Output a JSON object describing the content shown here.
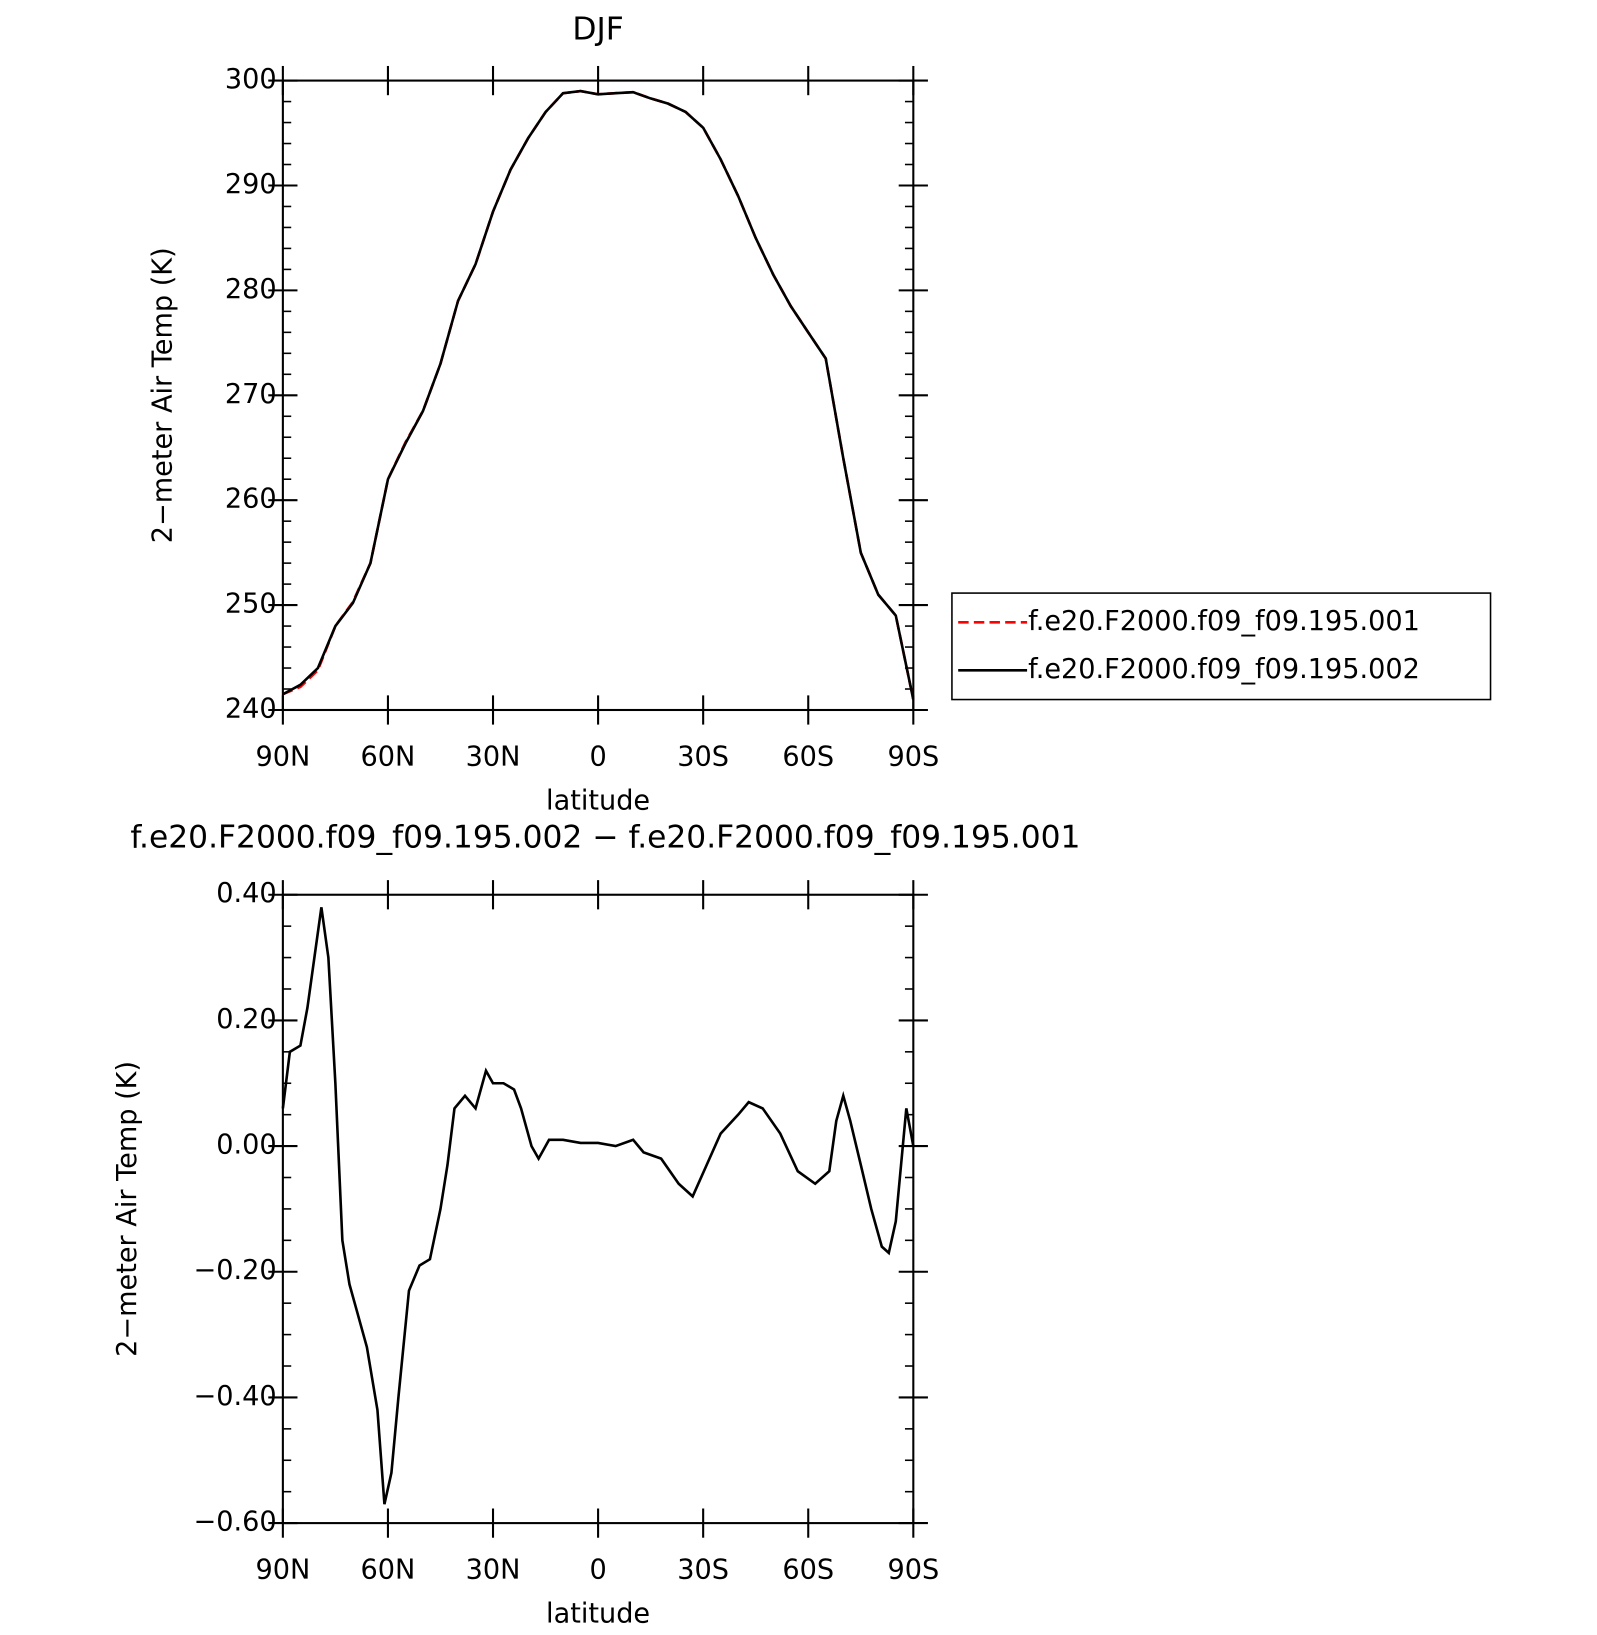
{
  "chart_data": [
    {
      "type": "line",
      "title": "DJF",
      "xlabel": "latitude",
      "ylabel": "2−meter Air Temp (K)",
      "xlim": [
        90,
        -90
      ],
      "xticks": [
        {
          "value": 90,
          "label": "90N"
        },
        {
          "value": 60,
          "label": "60N"
        },
        {
          "value": 30,
          "label": "30N"
        },
        0,
        {
          "value": -30,
          "label": "30S"
        },
        {
          "value": -60,
          "label": "60S"
        },
        {
          "value": -90,
          "label": "90S"
        }
      ],
      "ylim": [
        240,
        300
      ],
      "yticks": [
        240,
        250,
        260,
        270,
        280,
        290,
        300
      ],
      "legend": "right",
      "x": [
        90,
        85,
        80,
        75,
        70,
        65,
        60,
        55,
        50,
        45,
        40,
        35,
        30,
        25,
        20,
        15,
        10,
        5,
        0,
        -5,
        -10,
        -15,
        -20,
        -25,
        -30,
        -35,
        -40,
        -45,
        -50,
        -55,
        -60,
        -65,
        -70,
        -75,
        -80,
        -85,
        -90
      ],
      "series": [
        {
          "name": "f.e20.F2000.f09_f09.195.001",
          "color": "#ff0000",
          "dash": true,
          "values": [
            241.5,
            242.2,
            243.8,
            248,
            250.3,
            254,
            262,
            265.5,
            268.5,
            273,
            279,
            282.5,
            287.5,
            291.5,
            294.5,
            297,
            298.8,
            299,
            298.7,
            298.8,
            298.9,
            298.3,
            297.8,
            297,
            295.5,
            292.5,
            289,
            285,
            281.5,
            278.5,
            276,
            273.5,
            264,
            255,
            251,
            249,
            241
          ]
        },
        {
          "name": "f.e20.F2000.f09_f09.195.002",
          "color": "#000000",
          "dash": false,
          "values": [
            241.5,
            242.4,
            244,
            248,
            250.2,
            254,
            262,
            265.4,
            268.5,
            273,
            279,
            282.5,
            287.5,
            291.5,
            294.5,
            297,
            298.8,
            299,
            298.7,
            298.8,
            298.9,
            298.3,
            297.8,
            297,
            295.5,
            292.5,
            289,
            285,
            281.5,
            278.5,
            276,
            273.5,
            264,
            255,
            251,
            249,
            241
          ]
        }
      ]
    },
    {
      "type": "line",
      "title": "f.e20.F2000.f09_f09.195.002 − f.e20.F2000.f09_f09.195.001",
      "xlabel": "latitude",
      "ylabel": "2−meter Air Temp (K)",
      "xlim": [
        90,
        -90
      ],
      "xticks": [
        {
          "value": 90,
          "label": "90N"
        },
        {
          "value": 60,
          "label": "60N"
        },
        {
          "value": 30,
          "label": "30N"
        },
        0,
        {
          "value": -30,
          "label": "30S"
        },
        {
          "value": -60,
          "label": "60S"
        },
        {
          "value": -90,
          "label": "90S"
        }
      ],
      "ylim": [
        -0.6,
        0.4
      ],
      "yticks": [
        {
          "value": -0.6,
          "label": "−0.60"
        },
        {
          "value": -0.4,
          "label": "−0.40"
        },
        {
          "value": -0.2,
          "label": "−0.20"
        },
        {
          "value": 0,
          "label": "0.00"
        },
        {
          "value": 0.2,
          "label": "0.20"
        },
        {
          "value": 0.4,
          "label": "0.40"
        }
      ],
      "x": [
        90,
        88,
        85,
        83,
        81,
        79,
        77,
        75,
        73,
        71,
        69,
        66,
        63,
        61,
        59,
        57,
        54,
        51,
        48,
        45,
        43,
        41,
        38,
        35,
        32,
        30,
        27,
        24,
        22,
        19,
        17,
        14,
        10,
        5,
        0,
        -5,
        -10,
        -13,
        -18,
        -23,
        -27,
        -31,
        -35,
        -40,
        -43,
        -47,
        -52,
        -57,
        -62,
        -66,
        -68,
        -70,
        -72,
        -75,
        -78,
        -81,
        -83,
        -85,
        -88,
        -90
      ],
      "series": [
        {
          "color": "#000000",
          "dash": false,
          "values": [
            0.06,
            0.15,
            0.16,
            0.22,
            0.3,
            0.38,
            0.3,
            0.1,
            -0.15,
            -0.22,
            -0.26,
            -0.32,
            -0.42,
            -0.57,
            -0.52,
            -0.4,
            -0.23,
            -0.19,
            -0.18,
            -0.1,
            -0.03,
            0.06,
            0.08,
            0.06,
            0.12,
            0.1,
            0.1,
            0.09,
            0.06,
            0.0,
            -0.02,
            0.01,
            0.01,
            0.005,
            0.005,
            0.0,
            0.01,
            -0.01,
            -0.02,
            -0.06,
            -0.08,
            -0.03,
            0.02,
            0.05,
            0.07,
            0.06,
            0.02,
            -0.04,
            -0.06,
            -0.04,
            0.04,
            0.08,
            0.04,
            -0.03,
            -0.1,
            -0.16,
            -0.17,
            -0.12,
            0.06,
            0.0
          ]
        }
      ]
    }
  ]
}
